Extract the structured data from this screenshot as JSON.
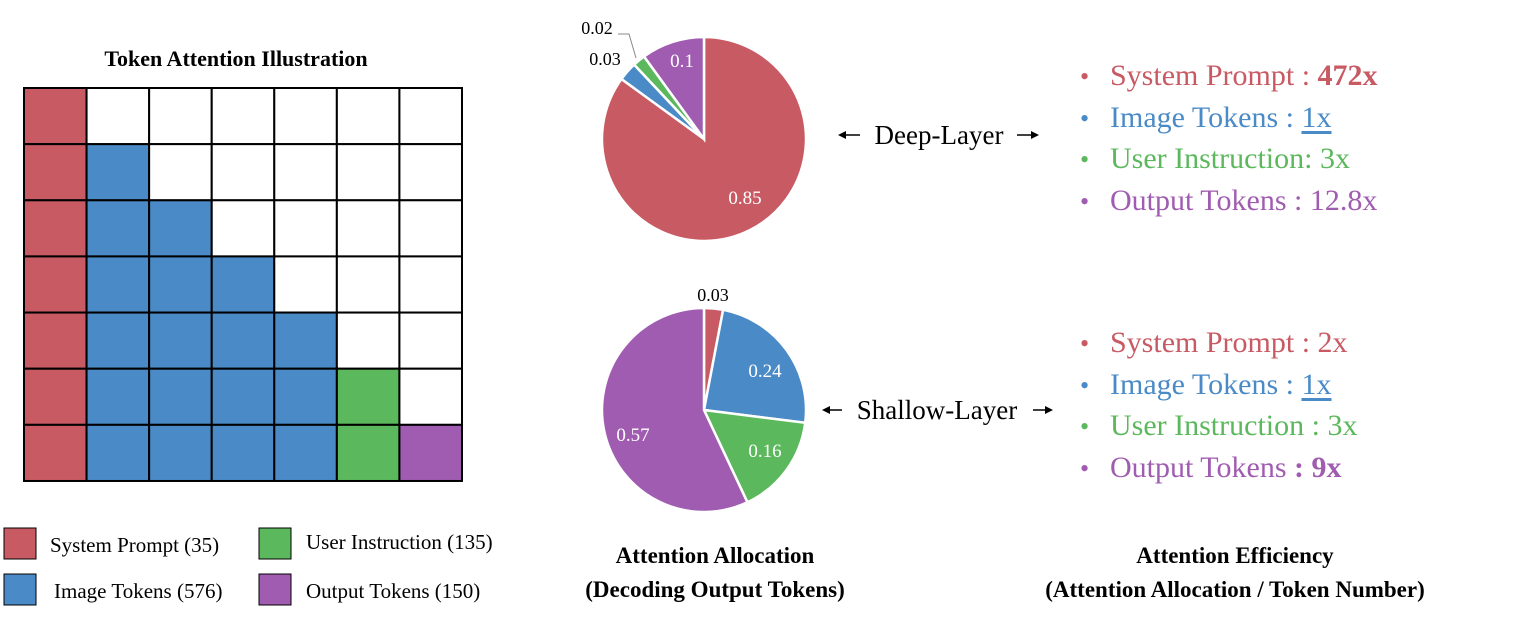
{
  "colors": {
    "system": "#c85a63",
    "image": "#4a8ac6",
    "user": "#5cb85c",
    "output": "#a05cb0",
    "grid_line": "#000000"
  },
  "grid": {
    "title": "Token Attention Illustration",
    "cells": [
      [
        "system",
        "empty",
        "empty",
        "empty",
        "empty",
        "empty",
        "empty"
      ],
      [
        "system",
        "image",
        "empty",
        "empty",
        "empty",
        "empty",
        "empty"
      ],
      [
        "system",
        "image",
        "image",
        "empty",
        "empty",
        "empty",
        "empty"
      ],
      [
        "system",
        "image",
        "image",
        "image",
        "empty",
        "empty",
        "empty"
      ],
      [
        "system",
        "image",
        "image",
        "image",
        "image",
        "empty",
        "empty"
      ],
      [
        "system",
        "image",
        "image",
        "image",
        "image",
        "user",
        "empty"
      ],
      [
        "system",
        "image",
        "image",
        "image",
        "image",
        "user",
        "output"
      ]
    ]
  },
  "legend": [
    {
      "key": "system",
      "label": "System Prompt (35)"
    },
    {
      "key": "user",
      "label": "User Instruction (135)"
    },
    {
      "key": "image",
      "label": "Image Tokens (576)"
    },
    {
      "key": "output",
      "label": "Output Tokens (150)"
    }
  ],
  "chart_data": [
    {
      "type": "pie",
      "title": "Deep-Layer",
      "slices": [
        {
          "key": "system",
          "label": "System Prompt",
          "value": 0.85,
          "display": "0.85"
        },
        {
          "key": "image",
          "label": "Image Tokens",
          "value": 0.03,
          "display": "0.03"
        },
        {
          "key": "user",
          "label": "User Instruction",
          "value": 0.02,
          "display": "0.02"
        },
        {
          "key": "output",
          "label": "Output Tokens",
          "value": 0.1,
          "display": "0.1"
        }
      ]
    },
    {
      "type": "pie",
      "title": "Shallow-Layer",
      "slices": [
        {
          "key": "system",
          "label": "System Prompt",
          "value": 0.03,
          "display": "0.03"
        },
        {
          "key": "image",
          "label": "Image Tokens",
          "value": 0.24,
          "display": "0.24"
        },
        {
          "key": "user",
          "label": "User Instruction",
          "value": 0.16,
          "display": "0.16"
        },
        {
          "key": "output",
          "label": "Output Tokens",
          "value": 0.57,
          "display": "0.57"
        }
      ]
    }
  ],
  "layers": {
    "deep": {
      "label": "Deep-Layer"
    },
    "shallow": {
      "label": "Shallow-Layer"
    }
  },
  "efficiency": {
    "deep": [
      {
        "key": "system",
        "label": "System Prompt : ",
        "value": "472x",
        "bold": true,
        "underline": false
      },
      {
        "key": "image",
        "label": "Image Tokens : ",
        "value": "1x",
        "bold": false,
        "underline": true
      },
      {
        "key": "user",
        "label": "User Instruction: ",
        "value": "3x",
        "bold": false,
        "underline": false
      },
      {
        "key": "output",
        "label": "Output Tokens : ",
        "value": "12.8x",
        "bold": false,
        "underline": false
      }
    ],
    "shallow": [
      {
        "key": "system",
        "label": "System Prompt : ",
        "value": "2x",
        "bold": false,
        "underline": false
      },
      {
        "key": "image",
        "label": "Image Tokens : ",
        "value": "1x",
        "bold": false,
        "underline": true
      },
      {
        "key": "user",
        "label": "User Instruction : ",
        "value": "3x",
        "bold": false,
        "underline": false
      },
      {
        "key": "output",
        "label": "Output Tokens ",
        "value": ": 9x",
        "bold": true,
        "underline": false
      }
    ]
  },
  "captions": {
    "allocation_line1": "Attention Allocation",
    "allocation_line2": "(Decoding Output Tokens)",
    "efficiency_line1": "Attention Efficiency",
    "efficiency_line2": "(Attention Allocation / Token Number)"
  }
}
